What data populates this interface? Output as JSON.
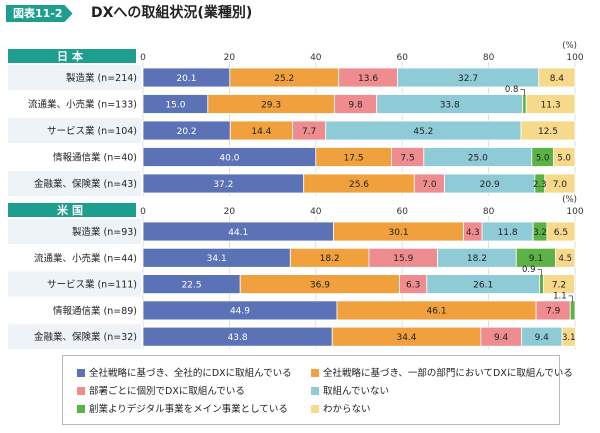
{
  "figure": {
    "tag": "図表11-2",
    "title": "DXへの取組状況(業種別)"
  },
  "legend_items": [
    {
      "label": "全社戦略に基づき、全社的にDXに取組んでいる",
      "color": "#5b73b6"
    },
    {
      "label": "全社戦略に基づき、一部の部門においてDXに取組んでいる",
      "color": "#f0a03c"
    },
    {
      "label": "部署ごとに個別でDXに取組んでいる",
      "color": "#ee8c8f"
    },
    {
      "label": "取組んでいない",
      "color": "#8fcbd6"
    },
    {
      "label": "創業よりデジタル事業をメイン事業としている",
      "color": "#5cb245"
    },
    {
      "label": "わからない",
      "color": "#f6d98a"
    }
  ],
  "chart_data": [
    {
      "type": "bar",
      "orientation": "horizontal",
      "stacked": true,
      "panel_label": "日本",
      "unit": "(%)",
      "xlim": [
        0,
        100
      ],
      "xticks": [
        0,
        20,
        40,
        60,
        80,
        100
      ],
      "categories": [
        "製造業 (n=214)",
        "流通業、小売業 (n=133)",
        "サービス業 (n=104)",
        "情報通信業 (n=40)",
        "金融業、保険業 (n=43)"
      ],
      "series": [
        {
          "name": "全社戦略に基づき、全社的にDXに取組んでいる",
          "values": [
            20.1,
            15.0,
            20.2,
            40.0,
            37.2
          ]
        },
        {
          "name": "全社戦略に基づき、一部の部門においてDXに取組んでいる",
          "values": [
            25.2,
            29.3,
            14.4,
            17.5,
            25.6
          ]
        },
        {
          "name": "部署ごとに個別でDXに取組んでいる",
          "values": [
            13.6,
            9.8,
            7.7,
            7.5,
            7.0
          ]
        },
        {
          "name": "取組んでいない",
          "values": [
            32.7,
            33.8,
            45.2,
            25.0,
            20.9
          ]
        },
        {
          "name": "創業よりデジタル事業をメイン事業としている",
          "values": [
            0,
            0.8,
            0,
            5.0,
            2.3
          ]
        },
        {
          "name": "わからない",
          "values": [
            8.4,
            11.3,
            12.5,
            5.0,
            7.0
          ]
        }
      ]
    },
    {
      "type": "bar",
      "orientation": "horizontal",
      "stacked": true,
      "panel_label": "米国",
      "unit": "(%)",
      "xlim": [
        0,
        100
      ],
      "xticks": [
        0,
        20,
        40,
        60,
        80,
        100
      ],
      "categories": [
        "製造業 (n=93)",
        "流通業、小売業 (n=44)",
        "サービス業 (n=111)",
        "情報通信業 (n=89)",
        "金融業、保険業 (n=32)"
      ],
      "series": [
        {
          "name": "全社戦略に基づき、全社的にDXに取組んでいる",
          "values": [
            44.1,
            34.1,
            22.5,
            44.9,
            43.8
          ]
        },
        {
          "name": "全社戦略に基づき、一部の部門においてDXに取組んでいる",
          "values": [
            30.1,
            18.2,
            36.9,
            46.1,
            34.4
          ]
        },
        {
          "name": "部署ごとに個別でDXに取組んでいる",
          "values": [
            4.3,
            15.9,
            6.3,
            7.9,
            9.4
          ]
        },
        {
          "name": "取組んでいない",
          "values": [
            11.8,
            18.2,
            26.1,
            0,
            9.4
          ]
        },
        {
          "name": "創業よりデジタル事業をメイン事業としている",
          "values": [
            3.2,
            9.1,
            0.9,
            1.1,
            0
          ]
        },
        {
          "name": "わからない",
          "values": [
            6.5,
            4.5,
            7.2,
            0,
            3.1
          ]
        }
      ]
    }
  ]
}
